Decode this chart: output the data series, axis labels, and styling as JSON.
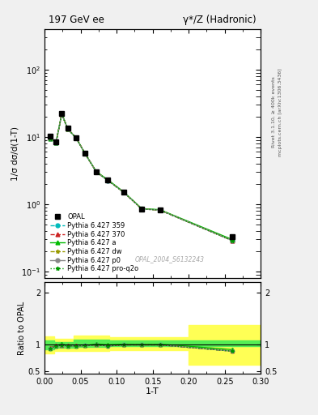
{
  "title_left": "197 GeV ee",
  "title_right": "γ*/Z (Hadronic)",
  "ylabel_main": "1/σ dσ/d(1-T)",
  "ylabel_ratio": "Ratio to OPAL",
  "xlabel": "1-T",
  "right_label_top": "Rivet 3.1.10, ≥ 400k events",
  "right_label_bottom": "mcplots.cern.ch [arXiv:1306.3436]",
  "watermark": "OPAL_2004_S6132243",
  "x_data": [
    0.008,
    0.016,
    0.024,
    0.032,
    0.044,
    0.056,
    0.072,
    0.088,
    0.11,
    0.135,
    0.16,
    0.26
  ],
  "opal_y": [
    10.2,
    8.5,
    22.0,
    13.5,
    9.8,
    5.8,
    3.0,
    2.3,
    1.5,
    0.85,
    0.82,
    0.33
  ],
  "opal_yerr": [
    0.3,
    0.25,
    0.5,
    0.4,
    0.3,
    0.2,
    0.1,
    0.08,
    0.06,
    0.04,
    0.04,
    0.02
  ],
  "py359_y": [
    9.5,
    8.3,
    21.8,
    13.2,
    9.6,
    5.7,
    3.0,
    2.25,
    1.5,
    0.85,
    0.82,
    0.29
  ],
  "py370_y": [
    9.6,
    8.4,
    21.9,
    13.3,
    9.7,
    5.75,
    3.0,
    2.27,
    1.5,
    0.85,
    0.82,
    0.29
  ],
  "pya_y": [
    9.5,
    8.3,
    22.5,
    13.2,
    9.6,
    5.7,
    3.05,
    2.3,
    1.52,
    0.86,
    0.83,
    0.3
  ],
  "pydw_y": [
    9.5,
    8.3,
    21.8,
    13.2,
    9.6,
    5.7,
    3.0,
    2.25,
    1.5,
    0.85,
    0.82,
    0.29
  ],
  "pyp0_y": [
    9.5,
    8.3,
    21.8,
    13.2,
    9.6,
    5.7,
    3.0,
    2.25,
    1.5,
    0.85,
    0.82,
    0.29
  ],
  "pyq2o_y": [
    9.5,
    8.3,
    21.8,
    13.2,
    9.6,
    5.7,
    3.0,
    2.25,
    1.5,
    0.85,
    0.82,
    0.29
  ],
  "band_x_edges": [
    0.0,
    0.013,
    0.028,
    0.04,
    0.065,
    0.09,
    0.13,
    0.2,
    0.3
  ],
  "band_green_low": [
    0.92,
    0.95,
    0.95,
    0.96,
    0.96,
    0.97,
    0.97,
    0.97,
    0.97
  ],
  "band_green_high": [
    1.08,
    1.05,
    1.05,
    1.1,
    1.1,
    1.08,
    1.08,
    1.08,
    1.08
  ],
  "band_yellow_low": [
    0.84,
    0.88,
    0.88,
    0.88,
    0.88,
    0.9,
    0.9,
    0.62,
    0.62
  ],
  "band_yellow_high": [
    1.16,
    1.12,
    1.12,
    1.18,
    1.18,
    1.15,
    1.15,
    1.38,
    1.38
  ],
  "ratio_x": [
    0.008,
    0.016,
    0.024,
    0.032,
    0.044,
    0.056,
    0.072,
    0.088,
    0.11,
    0.135,
    0.16,
    0.26
  ],
  "ratio_359": [
    0.93,
    0.976,
    0.991,
    0.978,
    0.98,
    0.983,
    1.0,
    0.978,
    1.0,
    1.0,
    1.0,
    0.879
  ],
  "ratio_370": [
    0.941,
    0.988,
    0.995,
    0.985,
    0.99,
    0.991,
    1.0,
    0.987,
    1.0,
    1.0,
    1.0,
    0.879
  ],
  "ratio_a": [
    0.932,
    0.976,
    1.023,
    0.978,
    0.98,
    0.983,
    1.017,
    1.0,
    1.013,
    1.012,
    1.012,
    0.909
  ],
  "ratio_dw": [
    0.932,
    0.976,
    0.991,
    0.978,
    0.98,
    0.983,
    1.0,
    0.978,
    1.0,
    1.0,
    1.0,
    0.879
  ],
  "ratio_p0": [
    0.932,
    0.976,
    0.991,
    0.978,
    0.98,
    0.983,
    1.0,
    0.978,
    1.0,
    1.0,
    1.0,
    0.879
  ],
  "ratio_q2o": [
    0.932,
    0.976,
    0.991,
    0.978,
    0.98,
    0.983,
    1.0,
    0.978,
    1.0,
    1.0,
    1.0,
    0.879
  ],
  "color_359": "#00BBBB",
  "color_370": "#CC2222",
  "color_a": "#00BB00",
  "color_dw": "#999900",
  "color_p0": "#888888",
  "color_q2o": "#009900",
  "ylim_main": [
    0.08,
    400
  ],
  "ylim_ratio": [
    0.45,
    2.2
  ],
  "xlim": [
    0.0,
    0.3
  ],
  "bg_color": "#f0f0f0",
  "plot_bg": "#ffffff"
}
